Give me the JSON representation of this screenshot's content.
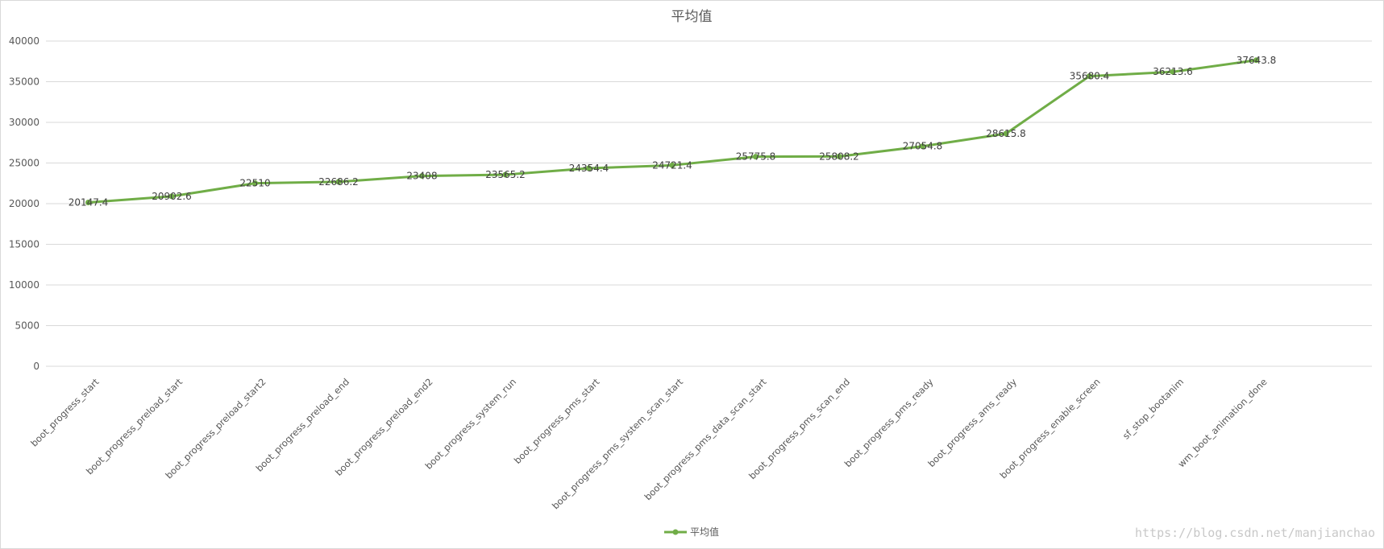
{
  "chart_data": {
    "type": "line",
    "title": "平均值",
    "categories": [
      "boot_progress_start",
      "boot_progress_preload_start",
      "boot_progress_preload_start2",
      "boot_progress_preload_end",
      "boot_progress_preload_end2",
      "boot_progress_system_run",
      "boot_progress_pms_start",
      "boot_progress_pms_system_scan_start",
      "boot_progress_pms_data_scan_start",
      "boot_progress_pms_scan_end",
      "boot_progress_pms_ready",
      "boot_progress_ams_ready",
      "boot_progress_enable_screen",
      "sf_stop_bootanim",
      "wm_boot_animation_done"
    ],
    "series": [
      {
        "name": "平均值",
        "values": [
          20147.4,
          20902.6,
          22510,
          22686.2,
          23408,
          23565.2,
          24354.4,
          24721.4,
          25775.8,
          25808.2,
          27054.8,
          28615.8,
          35680.4,
          36213.6,
          37643.8
        ],
        "labels": [
          "20147.4",
          "20902.6",
          "22510",
          "22686.2",
          "23408",
          "23565.2",
          "24354.4",
          "24721.4",
          "25775.8",
          "25808.2",
          "27054.8",
          "28615.8",
          "35680.4",
          "36213.6",
          "37643.8"
        ],
        "color": "#70ad47"
      }
    ],
    "yticks": [
      "0",
      "5000",
      "10000",
      "15000",
      "20000",
      "25000",
      "30000",
      "35000",
      "40000"
    ],
    "ylim": [
      0,
      40000
    ],
    "grid": true,
    "legend_position": "bottom"
  },
  "watermark": "https://blog.csdn.net/manjianchao",
  "colors": {
    "gridline": "#d9d9d9",
    "text": "#595959"
  }
}
